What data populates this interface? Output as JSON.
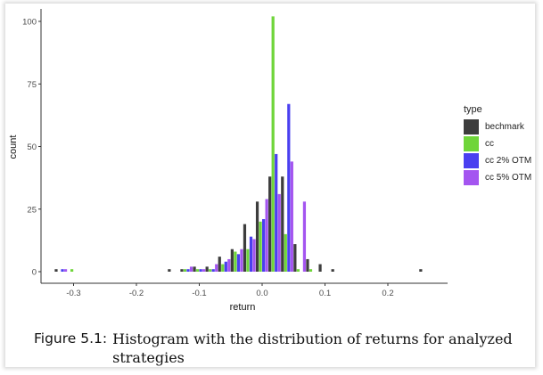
{
  "figure": {
    "caption_label": "Figure 5.1:",
    "caption_text_line1": "Histogram with the distribution of returns for analyzed",
    "caption_text_line2": "strategies"
  },
  "legend": {
    "title": "type",
    "items": [
      {
        "label": "bechmark",
        "color": "#3d3d3d"
      },
      {
        "label": "cc",
        "color": "#6fd53a"
      },
      {
        "label": "cc 2% OTM",
        "color": "#4a3ff0"
      },
      {
        "label": "cc 5% OTM",
        "color": "#a455f0"
      }
    ]
  },
  "chart_data": {
    "type": "bar",
    "title": "",
    "xlabel": "return",
    "ylabel": "count",
    "x_ticks": [
      -0.3,
      -0.2,
      -0.1,
      0.0,
      0.1,
      0.2
    ],
    "x_tick_labels": [
      "-0.3",
      "-0.2",
      "-0.1",
      "0.0",
      "0.1",
      "0.2"
    ],
    "y_ticks": [
      0,
      25,
      50,
      75,
      100
    ],
    "y_tick_labels": [
      "0",
      "25",
      "50",
      "75",
      "100"
    ],
    "xlim": [
      -0.35,
      0.29
    ],
    "ylim": [
      -4,
      105
    ],
    "bin_width": 0.02,
    "position": "dodge",
    "grid": false,
    "legend_position": "right",
    "bin_centers": [
      -0.32,
      -0.3,
      -0.14,
      -0.12,
      -0.1,
      -0.08,
      -0.06,
      -0.04,
      -0.02,
      0.0,
      0.02,
      0.04,
      0.06,
      0.08,
      0.1,
      0.12,
      0.26
    ],
    "series": [
      {
        "name": "bechmark",
        "color": "#3d3d3d",
        "values": [
          1,
          0,
          1,
          1,
          2,
          2,
          6,
          9,
          19,
          28,
          38,
          38,
          11,
          5,
          3,
          1,
          1
        ]
      },
      {
        "name": "cc",
        "color": "#6fd53a",
        "values": [
          0,
          1,
          0,
          1,
          1,
          1,
          3,
          8,
          9,
          20,
          102,
          15,
          1,
          1,
          0,
          0,
          0
        ]
      },
      {
        "name": "cc 2% OTM",
        "color": "#4a3ff0",
        "values": [
          1,
          0,
          0,
          1,
          1,
          1,
          4,
          7,
          14,
          21,
          47,
          67,
          0,
          0,
          0,
          0,
          0
        ]
      },
      {
        "name": "cc 5% OTM",
        "color": "#a455f0",
        "values": [
          1,
          0,
          0,
          2,
          1,
          3,
          5,
          9,
          13,
          29,
          31,
          44,
          28,
          0,
          0,
          0,
          0
        ]
      }
    ]
  }
}
